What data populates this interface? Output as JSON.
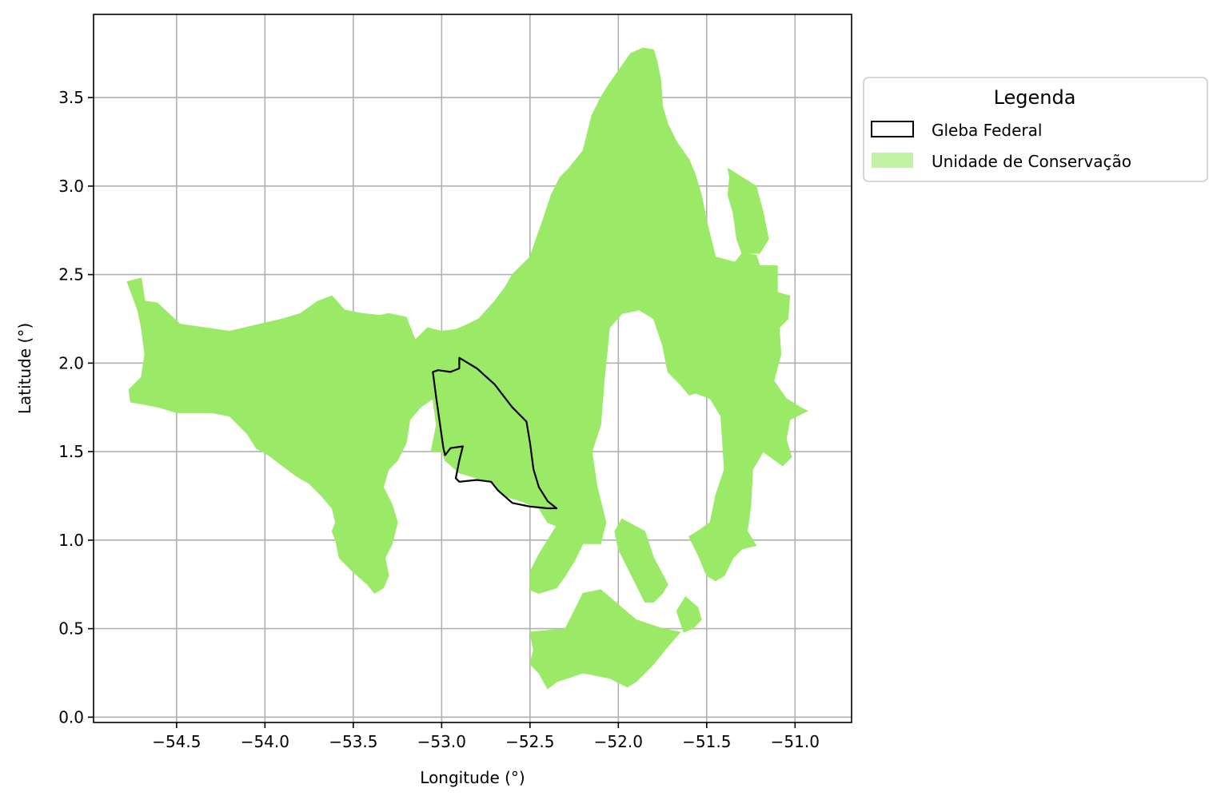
{
  "chart_data": {
    "type": "map",
    "xlabel": "Longitude (°)",
    "ylabel": "Latitude (°)",
    "xlim": [
      -54.97,
      -50.68
    ],
    "ylim": [
      -0.03,
      3.97
    ],
    "xticks": [
      -54.5,
      -54.0,
      -53.5,
      -53.0,
      -52.5,
      -52.0,
      -51.5,
      -51.0
    ],
    "xtick_labels": [
      "−54.5",
      "−54.0",
      "−53.5",
      "−53.0",
      "−52.5",
      "−52.0",
      "−51.5",
      "−51.0"
    ],
    "yticks": [
      0.0,
      0.5,
      1.0,
      1.5,
      2.0,
      2.5,
      3.0,
      3.5
    ],
    "ytick_labels": [
      "0.0",
      "0.5",
      "1.0",
      "1.5",
      "2.0",
      "2.5",
      "3.0",
      "3.5"
    ],
    "grid": true,
    "legend": {
      "title": "Legenda",
      "placement": "outside-right-top",
      "entries": [
        {
          "label": "Gleba Federal",
          "style": "outline",
          "color": "#000000"
        },
        {
          "label": "Unidade de Conservação",
          "style": "fill",
          "color": "#9aea68"
        }
      ]
    },
    "layers": [
      {
        "name": "Unidade de Conservação",
        "color": "#9aea68",
        "polygons": [
          [
            [
              -54.78,
              2.46
            ],
            [
              -54.7,
              2.48
            ],
            [
              -54.68,
              2.35
            ],
            [
              -54.61,
              2.34
            ],
            [
              -54.48,
              2.22
            ],
            [
              -54.2,
              2.18
            ],
            [
              -53.9,
              2.25
            ],
            [
              -53.8,
              2.28
            ],
            [
              -53.7,
              2.35
            ],
            [
              -53.62,
              2.38
            ],
            [
              -53.55,
              2.3
            ],
            [
              -53.45,
              2.28
            ],
            [
              -53.35,
              2.27
            ],
            [
              -53.3,
              2.28
            ],
            [
              -53.2,
              2.26
            ],
            [
              -53.15,
              2.13
            ],
            [
              -53.08,
              2.2
            ],
            [
              -53.0,
              2.18
            ],
            [
              -52.92,
              2.19
            ],
            [
              -52.85,
              2.22
            ],
            [
              -52.79,
              2.25
            ],
            [
              -52.7,
              2.35
            ],
            [
              -52.64,
              2.43
            ],
            [
              -52.6,
              2.5
            ],
            [
              -52.5,
              2.6
            ],
            [
              -52.43,
              2.8
            ],
            [
              -52.38,
              2.95
            ],
            [
              -52.33,
              3.05
            ],
            [
              -52.28,
              3.1
            ],
            [
              -52.2,
              3.2
            ],
            [
              -52.15,
              3.4
            ],
            [
              -52.1,
              3.5
            ],
            [
              -52.05,
              3.58
            ],
            [
              -52.0,
              3.65
            ],
            [
              -51.93,
              3.75
            ],
            [
              -51.86,
              3.78
            ],
            [
              -51.8,
              3.77
            ],
            [
              -51.78,
              3.7
            ],
            [
              -51.76,
              3.6
            ],
            [
              -51.75,
              3.45
            ],
            [
              -51.72,
              3.35
            ],
            [
              -51.67,
              3.25
            ],
            [
              -51.6,
              3.15
            ],
            [
              -51.57,
              3.08
            ],
            [
              -51.53,
              2.95
            ],
            [
              -51.5,
              2.8
            ],
            [
              -51.45,
              2.6
            ],
            [
              -51.34,
              2.57
            ],
            [
              -51.3,
              2.62
            ],
            [
              -51.22,
              2.61
            ],
            [
              -51.2,
              2.55
            ],
            [
              -51.1,
              2.55
            ],
            [
              -51.1,
              2.4
            ],
            [
              -51.03,
              2.38
            ],
            [
              -51.04,
              2.25
            ],
            [
              -51.09,
              2.2
            ],
            [
              -51.08,
              2.05
            ],
            [
              -51.12,
              1.9
            ],
            [
              -51.05,
              1.8
            ],
            [
              -50.97,
              1.75
            ],
            [
              -50.93,
              1.73
            ],
            [
              -51.03,
              1.68
            ],
            [
              -51.05,
              1.57
            ],
            [
              -51.02,
              1.47
            ],
            [
              -51.07,
              1.42
            ],
            [
              -51.18,
              1.5
            ],
            [
              -51.24,
              1.4
            ],
            [
              -51.25,
              1.2
            ],
            [
              -51.27,
              1.05
            ],
            [
              -51.22,
              0.97
            ],
            [
              -51.3,
              0.95
            ],
            [
              -51.35,
              0.9
            ],
            [
              -51.4,
              0.8
            ],
            [
              -51.45,
              0.77
            ],
            [
              -51.5,
              0.8
            ],
            [
              -51.55,
              0.92
            ],
            [
              -51.6,
              1.02
            ],
            [
              -51.55,
              1.05
            ],
            [
              -51.48,
              1.1
            ],
            [
              -51.45,
              1.25
            ],
            [
              -51.4,
              1.4
            ],
            [
              -51.42,
              1.7
            ],
            [
              -51.48,
              1.8
            ],
            [
              -51.56,
              1.83
            ],
            [
              -51.6,
              1.82
            ],
            [
              -51.65,
              1.88
            ],
            [
              -51.72,
              1.95
            ],
            [
              -51.75,
              2.1
            ],
            [
              -51.8,
              2.25
            ],
            [
              -51.88,
              2.3
            ],
            [
              -51.98,
              2.28
            ],
            [
              -52.05,
              2.2
            ],
            [
              -52.08,
              1.9
            ],
            [
              -52.1,
              1.65
            ],
            [
              -52.15,
              1.5
            ],
            [
              -52.12,
              1.3
            ],
            [
              -52.07,
              1.1
            ],
            [
              -52.1,
              0.98
            ],
            [
              -52.2,
              0.98
            ],
            [
              -52.25,
              0.88
            ],
            [
              -52.3,
              0.8
            ],
            [
              -52.35,
              0.73
            ],
            [
              -52.45,
              0.7
            ],
            [
              -52.5,
              0.72
            ],
            [
              -52.5,
              0.82
            ],
            [
              -52.45,
              0.92
            ],
            [
              -52.4,
              1.0
            ],
            [
              -52.35,
              1.08
            ],
            [
              -52.4,
              1.1
            ],
            [
              -52.45,
              1.18
            ],
            [
              -52.55,
              1.22
            ],
            [
              -52.65,
              1.25
            ],
            [
              -52.7,
              1.32
            ],
            [
              -52.8,
              1.35
            ],
            [
              -52.9,
              1.38
            ],
            [
              -52.98,
              1.45
            ],
            [
              -53.0,
              1.5
            ],
            [
              -53.06,
              1.5
            ],
            [
              -53.03,
              1.65
            ],
            [
              -53.05,
              1.8
            ],
            [
              -53.12,
              1.75
            ],
            [
              -53.18,
              1.68
            ],
            [
              -53.2,
              1.55
            ],
            [
              -53.25,
              1.45
            ],
            [
              -53.3,
              1.4
            ],
            [
              -53.33,
              1.3
            ],
            [
              -53.28,
              1.2
            ],
            [
              -53.25,
              1.1
            ],
            [
              -53.28,
              0.98
            ],
            [
              -53.32,
              0.9
            ],
            [
              -53.3,
              0.8
            ],
            [
              -53.33,
              0.73
            ],
            [
              -53.38,
              0.7
            ],
            [
              -53.42,
              0.75
            ],
            [
              -53.5,
              0.82
            ],
            [
              -53.58,
              0.9
            ],
            [
              -53.6,
              1.0
            ],
            [
              -53.62,
              1.05
            ],
            [
              -53.6,
              1.1
            ],
            [
              -53.62,
              1.18
            ],
            [
              -53.68,
              1.25
            ],
            [
              -53.75,
              1.32
            ],
            [
              -53.82,
              1.36
            ],
            [
              -53.9,
              1.42
            ],
            [
              -53.98,
              1.48
            ],
            [
              -54.05,
              1.52
            ],
            [
              -54.1,
              1.6
            ],
            [
              -54.2,
              1.7
            ],
            [
              -54.3,
              1.72
            ],
            [
              -54.5,
              1.72
            ],
            [
              -54.6,
              1.75
            ],
            [
              -54.7,
              1.77
            ],
            [
              -54.76,
              1.78
            ],
            [
              -54.77,
              1.85
            ],
            [
              -54.7,
              1.92
            ],
            [
              -54.68,
              2.05
            ],
            [
              -54.7,
              2.2
            ],
            [
              -54.72,
              2.3
            ]
          ],
          [
            [
              -51.38,
              3.1
            ],
            [
              -51.3,
              3.05
            ],
            [
              -51.22,
              3.0
            ],
            [
              -51.18,
              2.85
            ],
            [
              -51.15,
              2.7
            ],
            [
              -51.2,
              2.62
            ],
            [
              -51.3,
              2.62
            ],
            [
              -51.33,
              2.7
            ],
            [
              -51.35,
              2.85
            ],
            [
              -51.38,
              2.95
            ],
            [
              -51.37,
              3.05
            ]
          ],
          [
            [
              -51.98,
              1.12
            ],
            [
              -51.85,
              1.05
            ],
            [
              -51.8,
              0.9
            ],
            [
              -51.72,
              0.75
            ],
            [
              -51.75,
              0.7
            ],
            [
              -51.8,
              0.65
            ],
            [
              -51.85,
              0.65
            ],
            [
              -51.9,
              0.75
            ],
            [
              -51.95,
              0.85
            ],
            [
              -52.0,
              0.95
            ],
            [
              -52.02,
              1.05
            ]
          ],
          [
            [
              -52.5,
              0.48
            ],
            [
              -52.3,
              0.5
            ],
            [
              -52.25,
              0.6
            ],
            [
              -52.2,
              0.7
            ],
            [
              -52.1,
              0.72
            ],
            [
              -51.9,
              0.55
            ],
            [
              -51.75,
              0.5
            ],
            [
              -51.65,
              0.48
            ],
            [
              -51.72,
              0.4
            ],
            [
              -51.8,
              0.3
            ],
            [
              -51.9,
              0.2
            ],
            [
              -51.95,
              0.17
            ],
            [
              -52.05,
              0.22
            ],
            [
              -52.2,
              0.25
            ],
            [
              -52.35,
              0.2
            ],
            [
              -52.4,
              0.16
            ],
            [
              -52.45,
              0.25
            ],
            [
              -52.5,
              0.3
            ],
            [
              -52.48,
              0.38
            ]
          ],
          [
            [
              -51.67,
              0.6
            ],
            [
              -51.62,
              0.68
            ],
            [
              -51.55,
              0.62
            ],
            [
              -51.53,
              0.55
            ],
            [
              -51.58,
              0.5
            ],
            [
              -51.63,
              0.48
            ]
          ]
        ]
      },
      {
        "name": "Gleba Federal",
        "color": "#000000",
        "polygons": [
          [
            [
              -52.9,
              2.03
            ],
            [
              -52.8,
              1.97
            ],
            [
              -52.7,
              1.88
            ],
            [
              -52.6,
              1.75
            ],
            [
              -52.52,
              1.67
            ],
            [
              -52.5,
              1.55
            ],
            [
              -52.48,
              1.4
            ],
            [
              -52.45,
              1.3
            ],
            [
              -52.4,
              1.22
            ],
            [
              -52.35,
              1.18
            ],
            [
              -52.4,
              1.18
            ],
            [
              -52.5,
              1.19
            ],
            [
              -52.6,
              1.21
            ],
            [
              -52.68,
              1.28
            ],
            [
              -52.72,
              1.33
            ],
            [
              -52.8,
              1.34
            ],
            [
              -52.9,
              1.33
            ],
            [
              -52.92,
              1.35
            ],
            [
              -52.9,
              1.45
            ],
            [
              -52.88,
              1.53
            ],
            [
              -52.95,
              1.52
            ],
            [
              -52.98,
              1.48
            ],
            [
              -52.99,
              1.52
            ],
            [
              -53.03,
              1.8
            ],
            [
              -53.05,
              1.95
            ],
            [
              -53.02,
              1.96
            ],
            [
              -52.95,
              1.95
            ],
            [
              -52.9,
              1.97
            ]
          ]
        ]
      }
    ]
  }
}
